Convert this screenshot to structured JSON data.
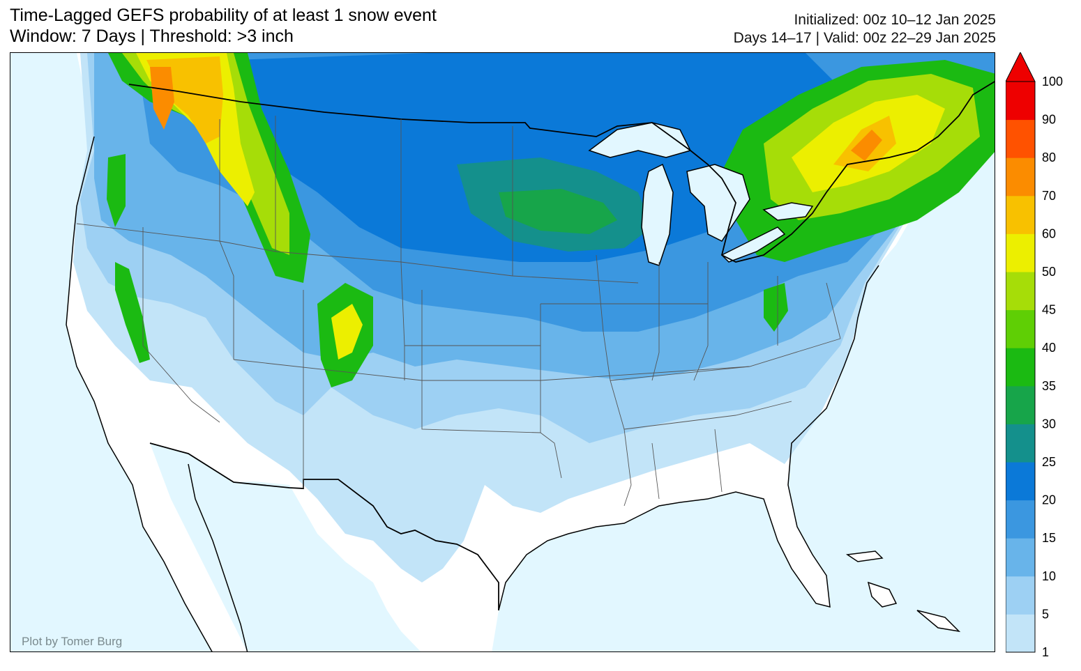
{
  "title": {
    "line1": "Time-Lagged GEFS probability of at least 1 snow event",
    "line2": "Window: 7 Days | Threshold: >3 inch"
  },
  "meta": {
    "initialized": "Initialized: 00z 10–12 Jan 2025",
    "valid": "Days 14–17 | Valid: 00z 22–29 Jan 2025"
  },
  "credit": "Plot by Tomer Burg",
  "colors": {
    "ocean": "#e2f7ff",
    "land": "#ffffff"
  },
  "colorbar": {
    "levels": [
      {
        "value": "1",
        "color": "#c2e4f8"
      },
      {
        "value": "5",
        "color": "#9dd0f3"
      },
      {
        "value": "10",
        "color": "#68b4ea"
      },
      {
        "value": "15",
        "color": "#3b97e0"
      },
      {
        "value": "20",
        "color": "#0b79d8"
      },
      {
        "value": "25",
        "color": "#14908c"
      },
      {
        "value": "30",
        "color": "#17a54a"
      },
      {
        "value": "35",
        "color": "#1bba12"
      },
      {
        "value": "40",
        "color": "#5fcf05"
      },
      {
        "value": "45",
        "color": "#a6dd08"
      },
      {
        "value": "50",
        "color": "#ecef00"
      },
      {
        "value": "60",
        "color": "#f8c100"
      },
      {
        "value": "70",
        "color": "#fb8c00"
      },
      {
        "value": "80",
        "color": "#ff5200"
      },
      {
        "value": "90",
        "color": "#ee0000"
      }
    ],
    "top_label": "100",
    "extend": "max"
  }
}
